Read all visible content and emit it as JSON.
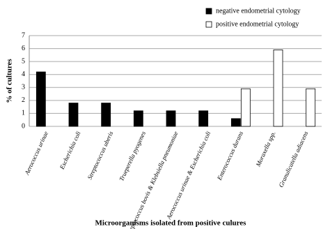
{
  "chart_data": {
    "type": "bar",
    "y_label": "% of cultures",
    "x_label": "Microorganisms isolated from positive culures",
    "categories": [
      "Aerococcus urinae",
      "Escherichia coli",
      "Streptococcus uberis",
      "Trueperella pyogenes",
      "Streptococcus bovis & Klebsiella pneumoniae",
      "Aerococcus urinae & Escherichia coli",
      "Enterococcus durans",
      "Moraxella spp.",
      "Granulicatella adiacens"
    ],
    "series": [
      {
        "name": "negative endometrial cytology",
        "color": "#000000",
        "values": [
          4.2,
          1.8,
          1.8,
          1.2,
          1.2,
          1.2,
          0.6,
          0,
          0
        ]
      },
      {
        "name": "positive endometrial cytology",
        "color": "#ffffff",
        "values": [
          0,
          0,
          0,
          0,
          0,
          0,
          2.9,
          5.9,
          2.9
        ]
      }
    ],
    "ylim": [
      0,
      7
    ],
    "yticks": [
      0,
      1,
      2,
      3,
      4,
      5,
      6,
      7
    ],
    "grid": true,
    "legend": "top-right"
  }
}
